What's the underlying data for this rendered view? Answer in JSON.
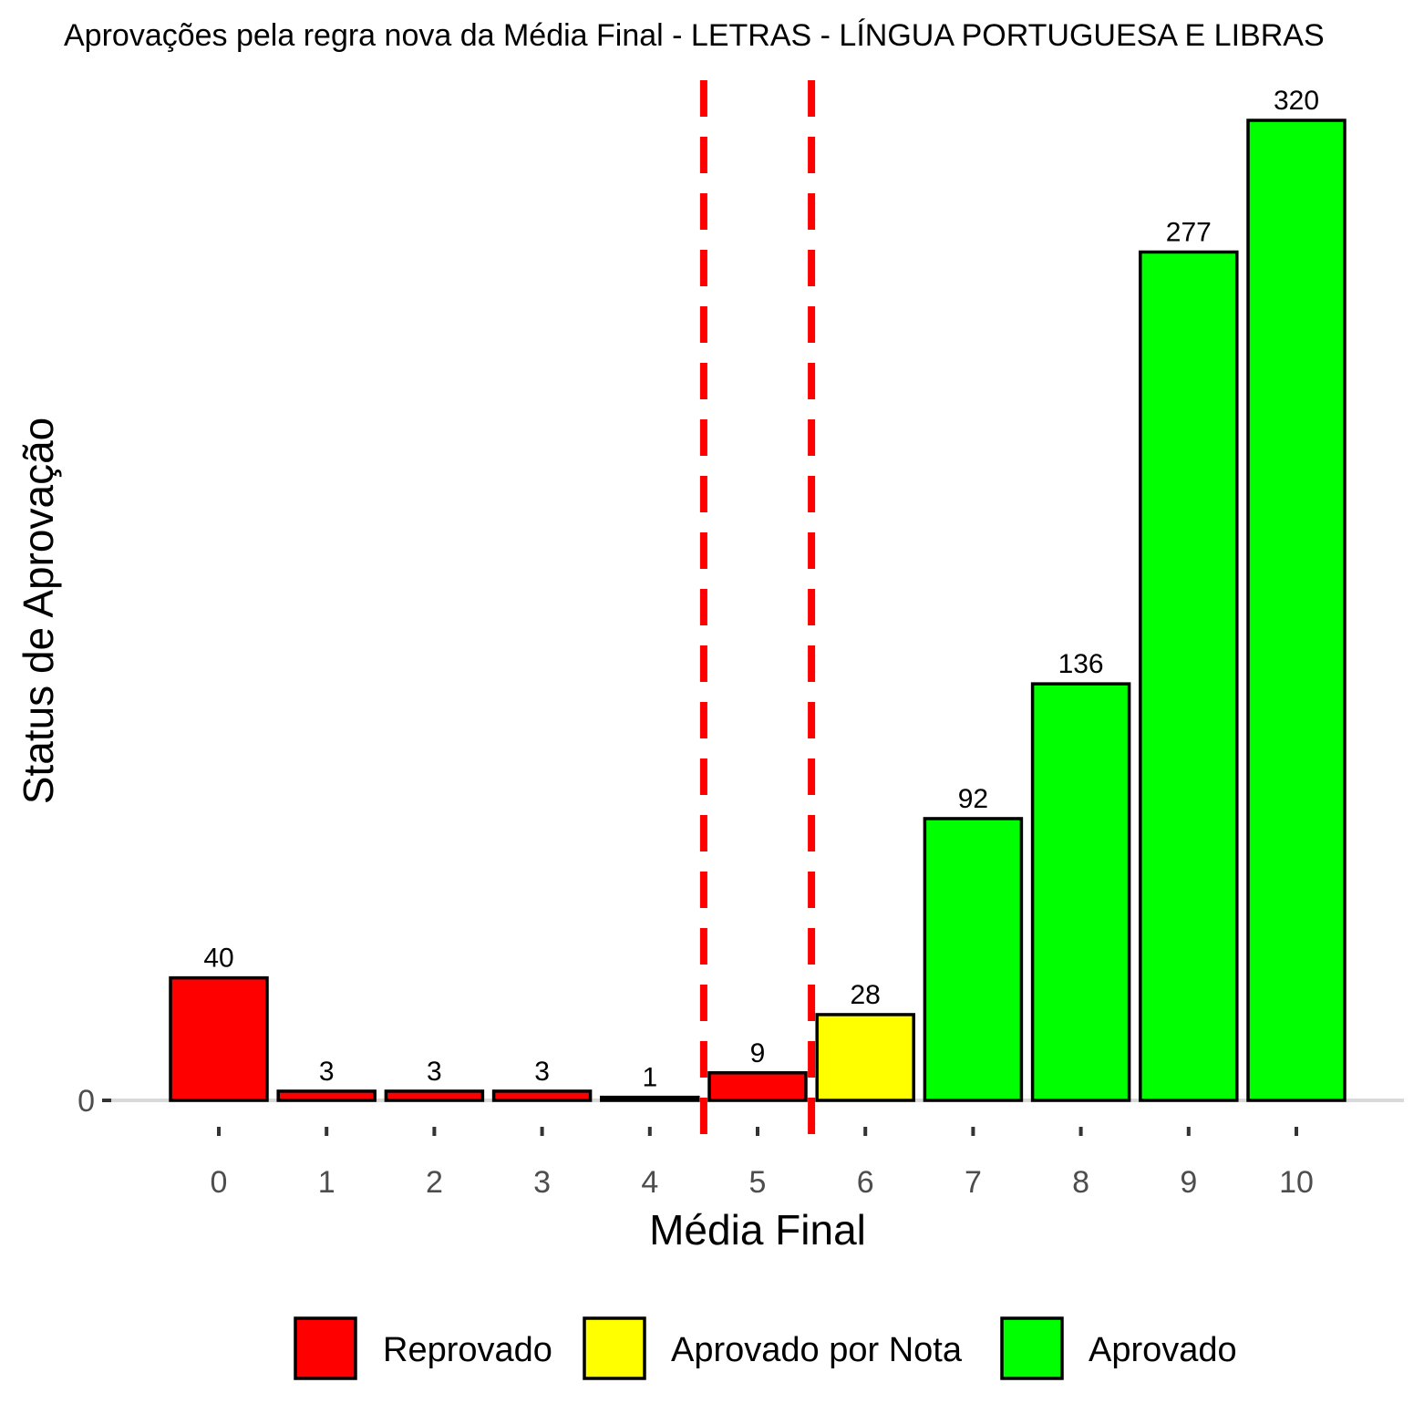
{
  "chart_data": {
    "type": "bar",
    "title": "Aprovações pela regra nova da Média Final - LETRAS - LÍNGUA PORTUGUESA E LIBRAS",
    "xlabel": "Média Final",
    "ylabel": "Status de Aprovação",
    "categories": [
      "0",
      "1",
      "2",
      "3",
      "4",
      "5",
      "6",
      "7",
      "8",
      "9",
      "10"
    ],
    "values": [
      40,
      3,
      3,
      3,
      1,
      9,
      28,
      92,
      136,
      277,
      320
    ],
    "data_labels": [
      "40",
      "3",
      "3",
      "3",
      "1",
      "9",
      "28",
      "92",
      "136",
      "277",
      "320"
    ],
    "status": [
      "Reprovado",
      "Reprovado",
      "Reprovado",
      "Reprovado",
      "Reprovado",
      "Reprovado",
      "Aprovado por Nota",
      "Aprovado",
      "Aprovado",
      "Aprovado",
      "Aprovado"
    ],
    "y_ticks": [
      "0"
    ],
    "ylim": [
      0,
      320
    ],
    "reference_lines_x": [
      4.5,
      5.5
    ],
    "reference_line_color": "#ff0000",
    "grid": false,
    "legend_position": "bottom",
    "legend": [
      {
        "label": "Reprovado",
        "color": "#ff0000"
      },
      {
        "label": "Aprovado por Nota",
        "color": "#ffff00"
      },
      {
        "label": "Aprovado",
        "color": "#00ff00"
      }
    ]
  }
}
